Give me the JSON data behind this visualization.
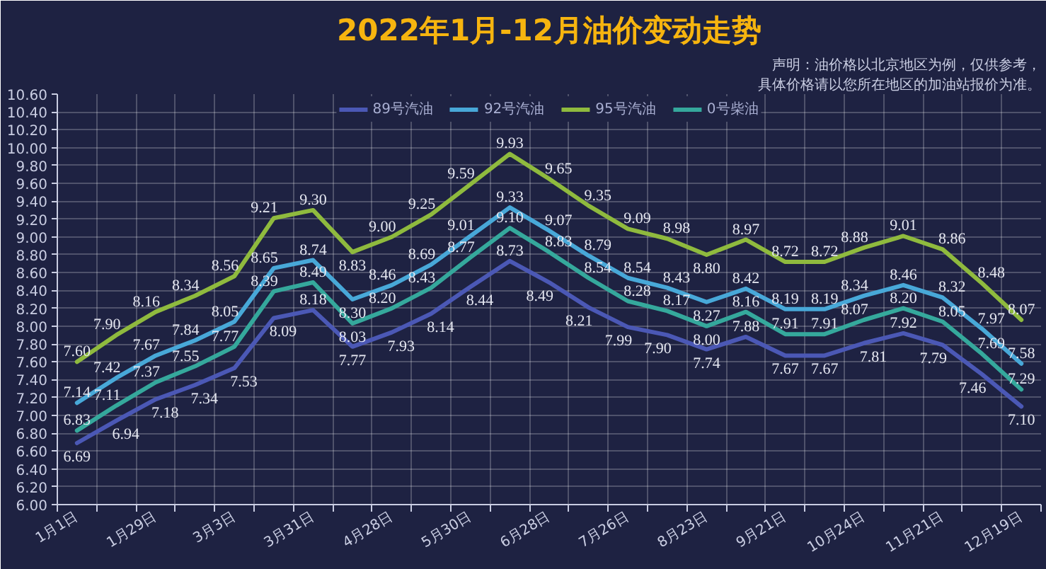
{
  "chart_data": {
    "type": "line",
    "title": "2022年1月-12月油价变动走势",
    "annotations": [
      "声明：油价格以北京地区为例，仅供参考，",
      "具体价格请以您所在地区的加油站报价为准。"
    ],
    "categories": [
      "1月1日",
      null,
      "1月29日",
      null,
      "3月3日",
      null,
      "3月31日",
      null,
      "4月28日",
      null,
      "5月30日",
      null,
      "6月28日",
      null,
      "7月26日",
      null,
      "8月23日",
      null,
      "9月21日",
      null,
      "10月24日",
      null,
      "11月21日",
      null,
      "12月19日"
    ],
    "ylim": [
      6.0,
      10.6
    ],
    "yticks": [
      {
        "value": 6.0,
        "label": "6.00"
      },
      {
        "value": 6.2,
        "label": "6.20"
      },
      {
        "value": 6.4,
        "label": "6.40"
      },
      {
        "value": 6.6,
        "label": "6.60"
      },
      {
        "value": 6.8,
        "label": "6.80"
      },
      {
        "value": 7.0,
        "label": "7.00"
      },
      {
        "value": 7.2,
        "label": "7.20"
      },
      {
        "value": 7.4,
        "label": "7.40"
      },
      {
        "value": 7.6,
        "label": "7.60"
      },
      {
        "value": 7.8,
        "label": "7.80"
      },
      {
        "value": 8.0,
        "label": "8.00"
      },
      {
        "value": 8.2,
        "label": "8.20"
      },
      {
        "value": 8.4,
        "label": "8.40"
      },
      {
        "value": 8.6,
        "label": "8.60"
      },
      {
        "value": 8.8,
        "label": "8.80"
      },
      {
        "value": 9.0,
        "label": "9.00"
      },
      {
        "value": 9.2,
        "label": "9.20"
      },
      {
        "value": 9.4,
        "label": "9.40"
      },
      {
        "value": 9.6,
        "label": "9.60"
      },
      {
        "value": 9.8,
        "label": "9.80"
      },
      {
        "value": 10.0,
        "label": "10.00"
      },
      {
        "value": 10.2,
        "label": "10.20"
      },
      {
        "value": 10.4,
        "label": "10.40"
      },
      {
        "value": 10.6,
        "label": "10.60"
      }
    ],
    "grid": true,
    "legend": "top",
    "line_style": "solid",
    "series": [
      {
        "name": "89号汽油",
        "color": "#4b58b5",
        "values": [
          6.69,
          6.94,
          7.18,
          7.34,
          7.53,
          8.09,
          8.18,
          7.77,
          7.93,
          8.14,
          8.44,
          8.73,
          8.49,
          8.21,
          7.99,
          7.9,
          7.74,
          7.88,
          7.67,
          7.67,
          7.81,
          7.92,
          7.79,
          7.46,
          7.1
        ],
        "value_labels": [
          "6.69",
          "6.94",
          "7.18",
          "7.34",
          "7.53",
          "8.09",
          "8.18",
          "7.77",
          "7.93",
          "8.14",
          "8.44",
          "8.73",
          "8.49",
          "8.21",
          "7.99",
          "7.90",
          "7.74",
          "7.88",
          "7.67",
          "7.67",
          "7.81",
          "7.92",
          "7.79",
          "7.46",
          "7.10"
        ]
      },
      {
        "name": "92号汽油",
        "color": "#48a8d8",
        "values": [
          7.14,
          7.42,
          7.67,
          7.84,
          8.05,
          8.65,
          8.74,
          8.3,
          8.46,
          8.69,
          9.01,
          9.33,
          9.07,
          8.79,
          8.54,
          8.43,
          8.27,
          8.42,
          8.19,
          8.19,
          8.34,
          8.46,
          8.32,
          7.97,
          7.58
        ],
        "value_labels": [
          "7.14",
          "7.42",
          "7.67",
          "7.84",
          "8.05",
          "8.65",
          "8.74",
          "8.30",
          "8.46",
          "8.69",
          "9.01",
          "9.33",
          "9.07",
          "8.79",
          "8.54",
          "8.43",
          "8.27",
          "8.42",
          "8.19",
          "8.19",
          "8.34",
          "8.46",
          "8.32",
          "7.97",
          "7.58"
        ]
      },
      {
        "name": "95号汽油",
        "color": "#8fba3e",
        "values": [
          7.6,
          7.9,
          8.16,
          8.34,
          8.56,
          9.21,
          9.3,
          8.83,
          9.0,
          9.25,
          9.59,
          9.93,
          9.65,
          9.35,
          9.09,
          8.98,
          8.8,
          8.97,
          8.72,
          8.72,
          8.88,
          9.01,
          8.86,
          8.48,
          8.07
        ],
        "value_labels": [
          "7.60",
          "7.90",
          "8.16",
          "8.34",
          "8.56",
          "9.21",
          "9.30",
          "8.83",
          "9.00",
          "9.25",
          "9.59",
          "9.93",
          "9.65",
          "9.35",
          "9.09",
          "8.98",
          "8.80",
          "8.97",
          "8.72",
          "8.72",
          "8.88",
          "9.01",
          "8.86",
          "8.48",
          "8.07"
        ]
      },
      {
        "name": "0号柴油",
        "color": "#35a89c",
        "values": [
          6.83,
          7.11,
          7.37,
          7.55,
          7.77,
          8.39,
          8.49,
          8.03,
          8.2,
          8.43,
          8.77,
          9.1,
          8.83,
          8.54,
          8.28,
          8.17,
          8.0,
          8.16,
          7.91,
          7.91,
          8.07,
          8.2,
          8.05,
          7.69,
          7.29
        ],
        "value_labels": [
          "6.83",
          "7.11",
          "7.37",
          "7.55",
          "7.77",
          "8.39",
          "8.49",
          "8.03",
          "8.20",
          "8.43",
          "8.77",
          "9.10",
          "8.83",
          "8.54",
          "8.28",
          "8.17",
          "8.00",
          "8.16",
          "7.91",
          "7.91",
          "8.07",
          "8.20",
          "8.05",
          "7.69",
          "7.29"
        ]
      }
    ]
  }
}
